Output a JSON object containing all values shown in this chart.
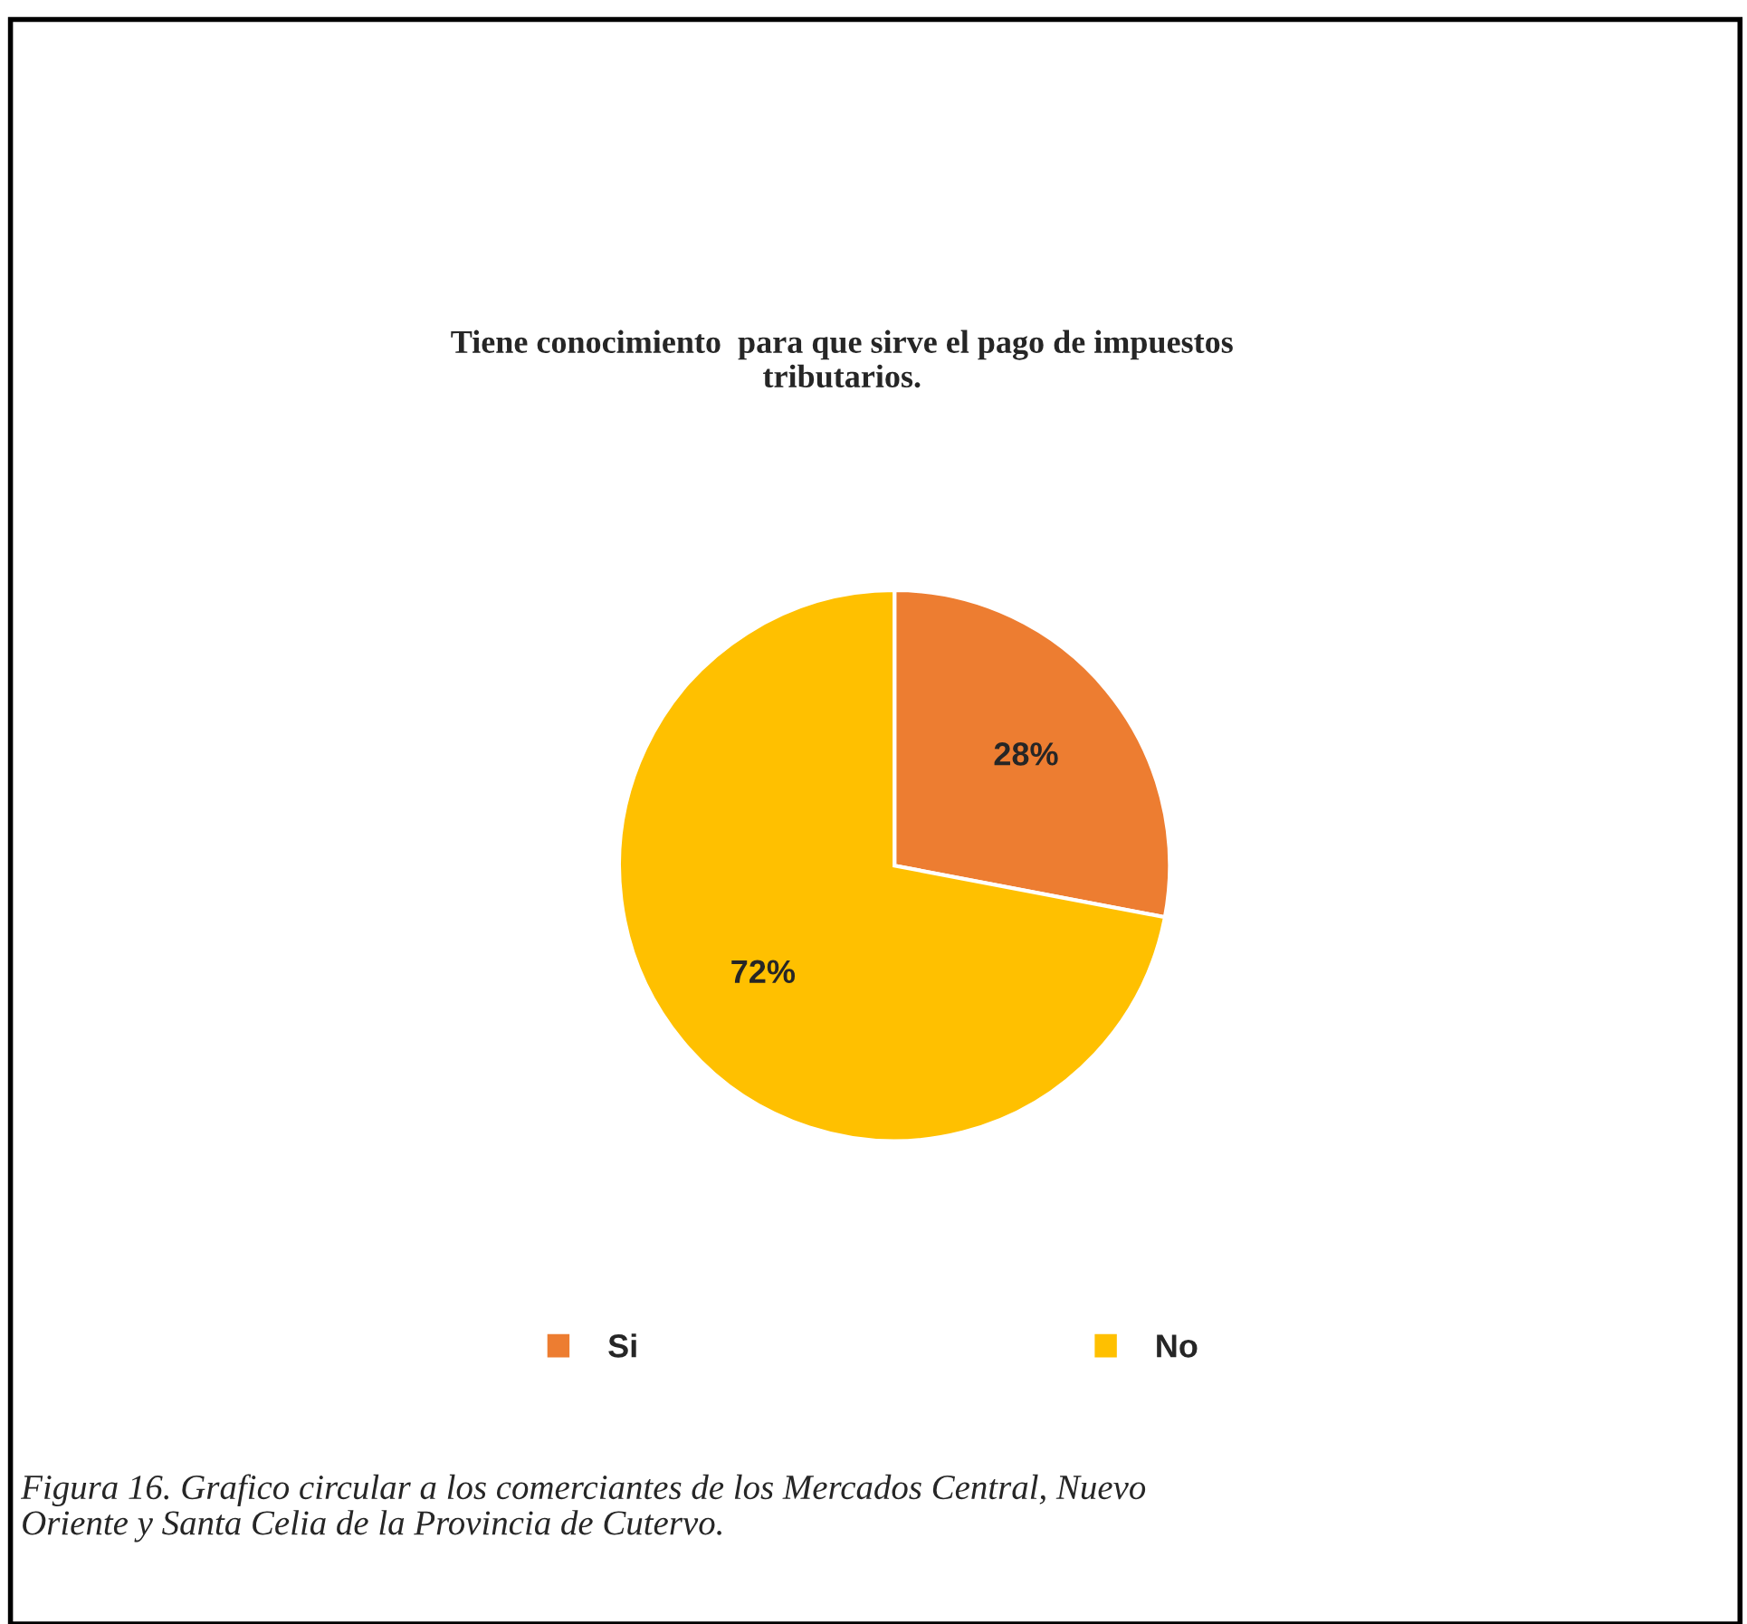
{
  "chart_data": {
    "type": "pie",
    "title": "Tiene conocimiento  para que sirve el pago de impuestos\ntributarios.",
    "categories": [
      "Si",
      "No"
    ],
    "values": [
      28,
      72
    ],
    "colors": [
      "#ed7d31",
      "#ffc000"
    ],
    "value_labels": [
      "28%",
      "72%"
    ],
    "legend": "bottom",
    "annotations": [
      "Figura 16. Grafico circular a los comerciantes de los Mercados Central, Nuevo\nOriente y Santa Celia de la Provincia de Cutervo."
    ]
  }
}
